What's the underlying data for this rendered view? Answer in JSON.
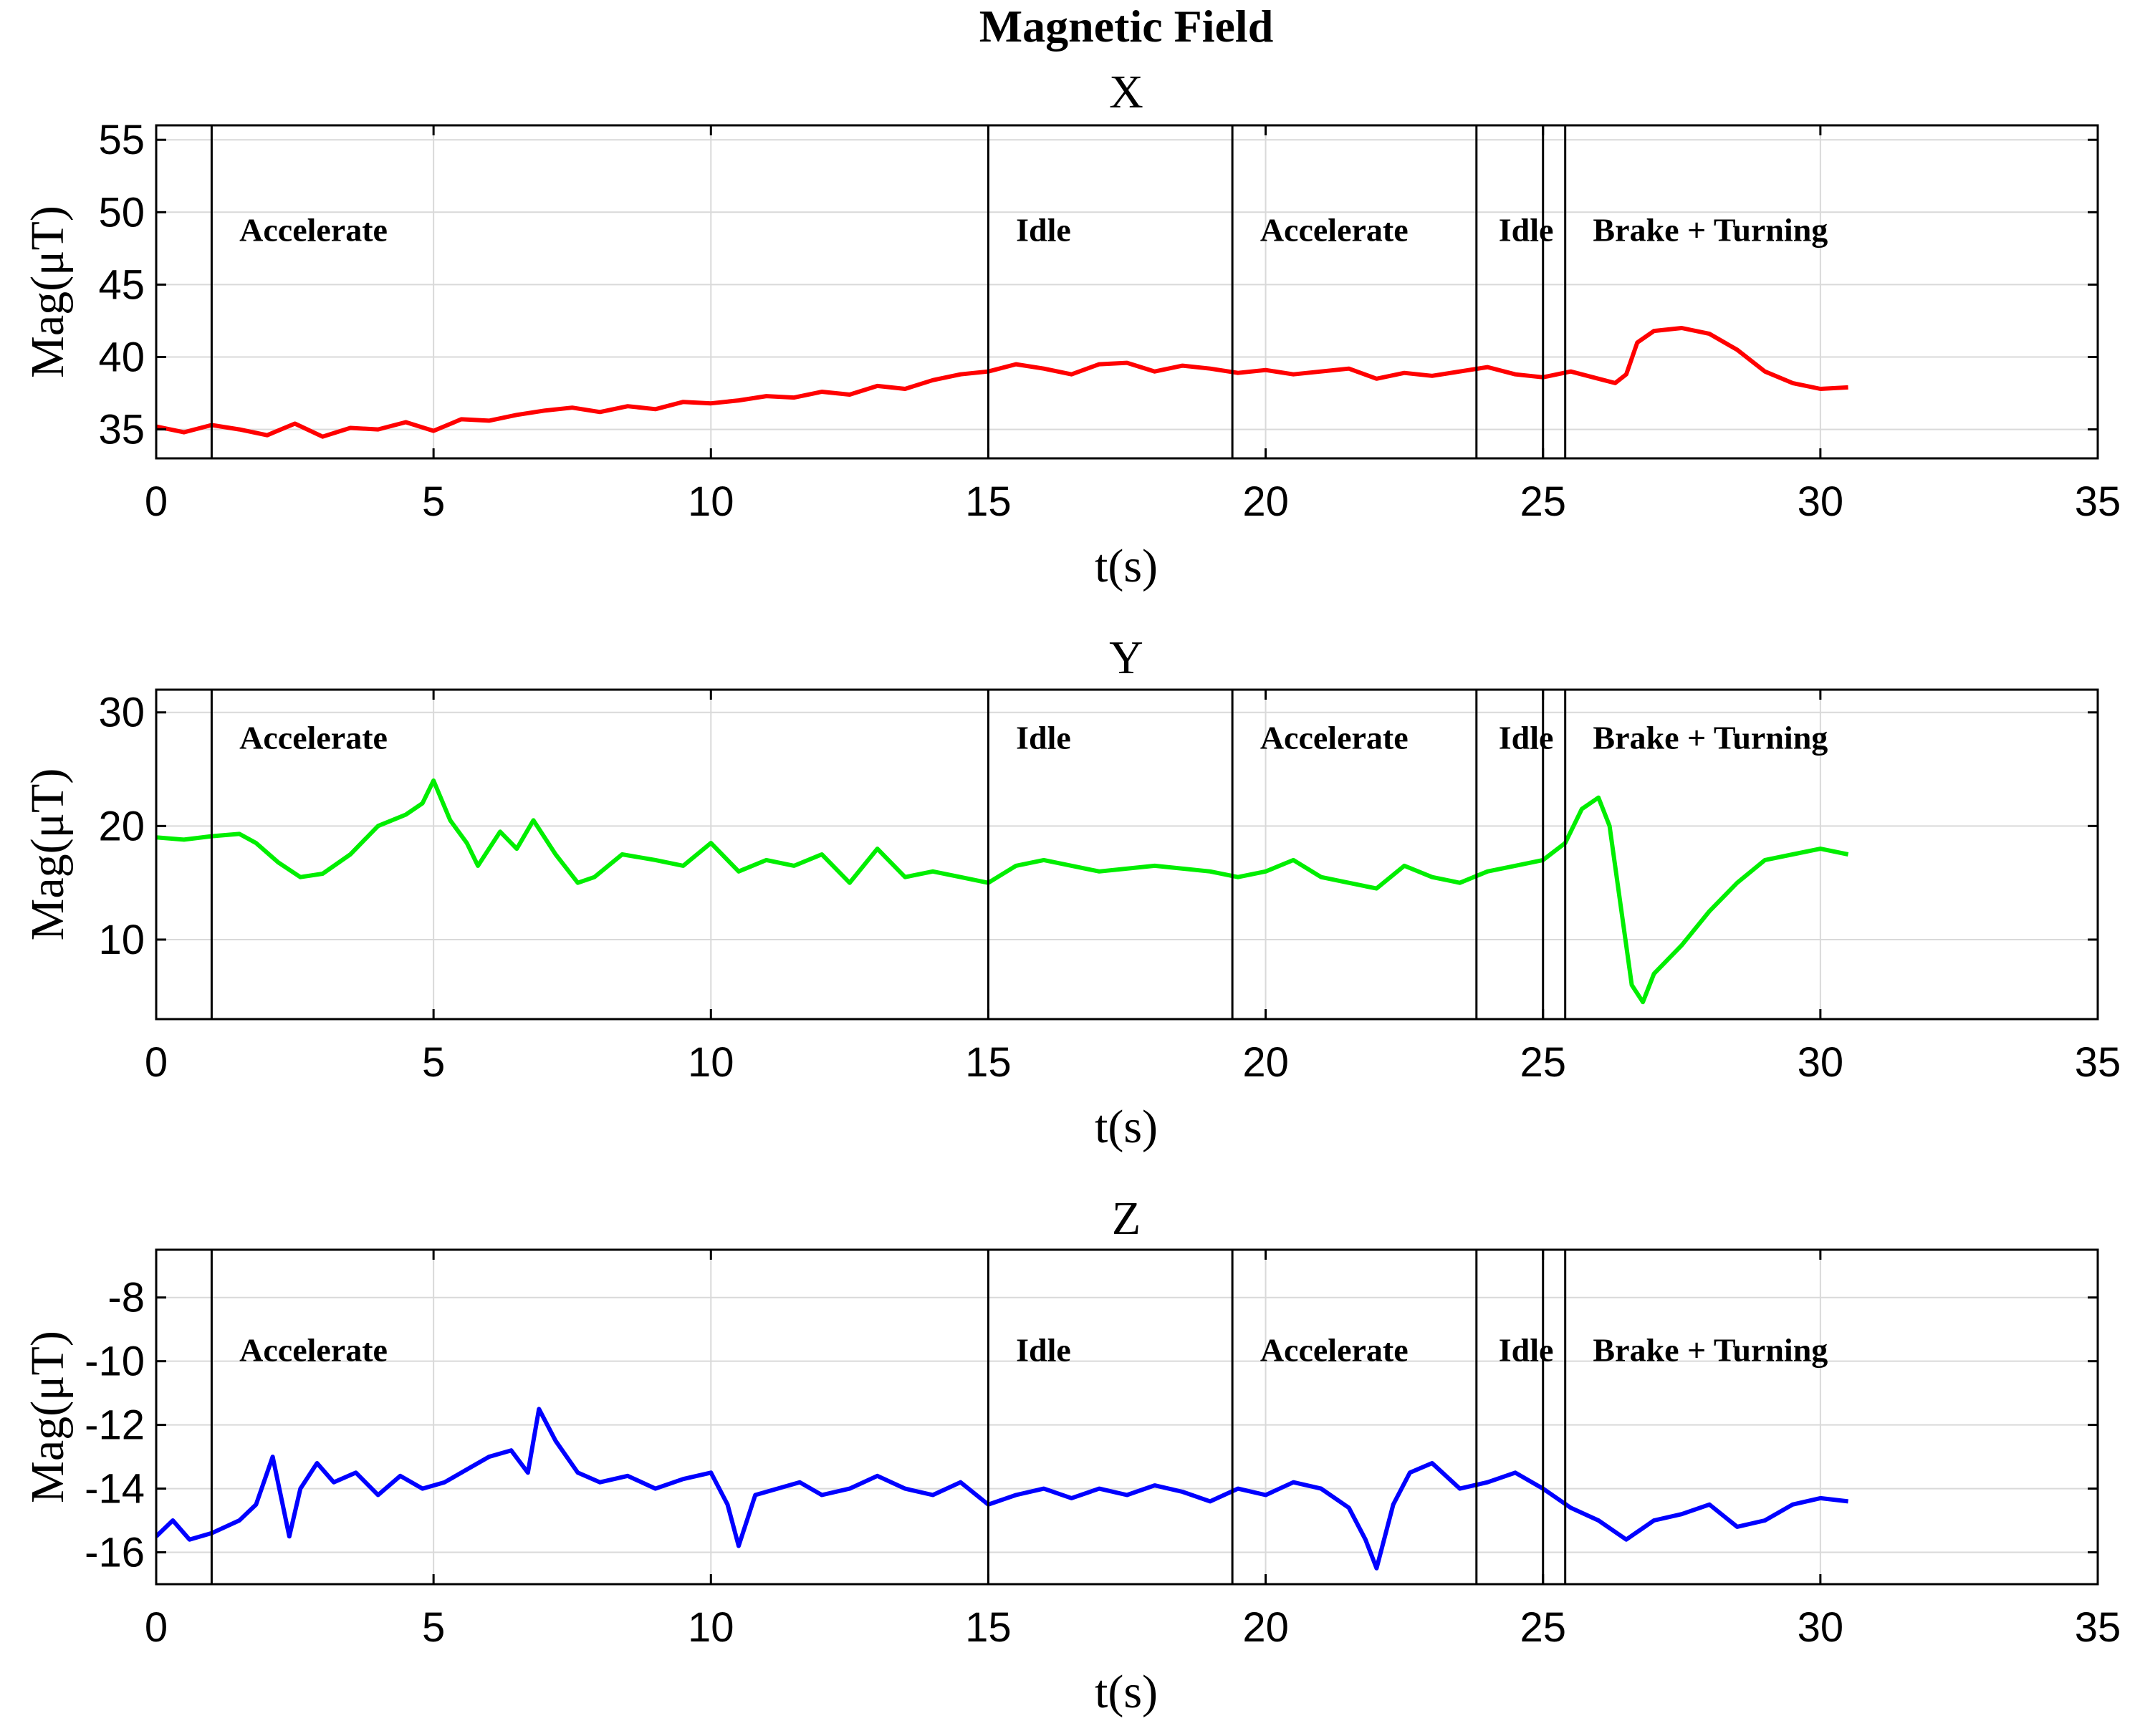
{
  "figure_title": "Magnetic Field",
  "colors": {
    "x_series": "#ff0000",
    "y_series": "#00ee00",
    "z_series": "#0000ff"
  },
  "chart_data": [
    {
      "type": "line",
      "title": "X",
      "xlabel": "t(s)",
      "ylabel": "Mag(μT)",
      "xlim": [
        0,
        35
      ],
      "ylim": [
        33,
        56
      ],
      "xticks": [
        0,
        5,
        10,
        15,
        20,
        25,
        30,
        35
      ],
      "xtick_labels": [
        "0",
        "5",
        "10",
        "15",
        "20",
        "25",
        "30",
        "35"
      ],
      "yticks": [
        35,
        40,
        45,
        50,
        55
      ],
      "ytick_labels": [
        "35",
        "40",
        "45",
        "50",
        "55"
      ],
      "grid": true,
      "phase_boundaries": [
        1.0,
        15.0,
        19.4,
        23.8,
        25.0,
        25.4
      ],
      "phase_labels": [
        {
          "text": "Accelerate",
          "x": 1.5
        },
        {
          "text": "Idle",
          "x": 15.5
        },
        {
          "text": "Accelerate",
          "x": 19.9
        },
        {
          "text": "Idle",
          "x": 24.2
        },
        {
          "text": "Brake + Turning",
          "x": 25.9
        }
      ],
      "phase_label_y": 48,
      "series": [
        {
          "color": "#ff0000",
          "x": [
            0,
            0.5,
            1,
            1.5,
            2,
            2.5,
            3,
            3.5,
            4,
            4.5,
            5,
            5.5,
            6,
            6.5,
            7,
            7.5,
            8,
            8.5,
            9,
            9.5,
            10,
            10.5,
            11,
            11.5,
            12,
            12.5,
            13,
            13.5,
            14,
            14.5,
            15,
            15.5,
            16,
            16.5,
            17,
            17.5,
            18,
            18.5,
            19,
            19.5,
            20,
            20.5,
            21,
            21.5,
            22,
            22.5,
            23,
            23.5,
            24,
            24.5,
            25,
            25.5,
            26,
            26.3,
            26.5,
            26.7,
            27,
            27.5,
            28,
            28.5,
            29,
            29.5,
            30,
            30.5
          ],
          "values": [
            35.2,
            34.8,
            35.3,
            35.0,
            34.6,
            35.4,
            34.5,
            35.1,
            35.0,
            35.5,
            34.9,
            35.7,
            35.6,
            36.0,
            36.3,
            36.5,
            36.2,
            36.6,
            36.4,
            36.9,
            36.8,
            37.0,
            37.3,
            37.2,
            37.6,
            37.4,
            38.0,
            37.8,
            38.4,
            38.8,
            39.0,
            39.5,
            39.2,
            38.8,
            39.5,
            39.6,
            39.0,
            39.4,
            39.2,
            38.9,
            39.1,
            38.8,
            39.0,
            39.2,
            38.5,
            38.9,
            38.7,
            39.0,
            39.3,
            38.8,
            38.6,
            39.0,
            38.5,
            38.2,
            38.8,
            41.0,
            41.8,
            42.0,
            41.6,
            40.5,
            39.0,
            38.2,
            37.8,
            37.9
          ]
        }
      ]
    },
    {
      "type": "line",
      "title": "Y",
      "xlabel": "t(s)",
      "ylabel": "Mag(μT)",
      "xlim": [
        0,
        35
      ],
      "ylim": [
        3,
        32
      ],
      "xticks": [
        0,
        5,
        10,
        15,
        20,
        25,
        30,
        35
      ],
      "xtick_labels": [
        "0",
        "5",
        "10",
        "15",
        "20",
        "25",
        "30",
        "35"
      ],
      "yticks": [
        10,
        20,
        30
      ],
      "ytick_labels": [
        "10",
        "20",
        "30"
      ],
      "grid": true,
      "phase_boundaries": [
        1.0,
        15.0,
        19.4,
        23.8,
        25.0,
        25.4
      ],
      "phase_labels": [
        {
          "text": "Accelerate",
          "x": 1.5
        },
        {
          "text": "Idle",
          "x": 15.5
        },
        {
          "text": "Accelerate",
          "x": 19.9
        },
        {
          "text": "Idle",
          "x": 24.2
        },
        {
          "text": "Brake + Turning",
          "x": 25.9
        }
      ],
      "phase_label_y": 26.8,
      "series": [
        {
          "color": "#00ee00",
          "x": [
            0,
            0.5,
            1,
            1.5,
            1.8,
            2.2,
            2.6,
            3.0,
            3.5,
            4.0,
            4.5,
            4.8,
            5.0,
            5.3,
            5.6,
            5.8,
            6.2,
            6.5,
            6.8,
            7.2,
            7.6,
            7.9,
            8.4,
            9.0,
            9.5,
            10.0,
            10.5,
            11.0,
            11.5,
            12.0,
            12.5,
            13.0,
            13.5,
            14.0,
            14.5,
            15.0,
            15.5,
            16.0,
            17.0,
            18.0,
            19.0,
            19.5,
            20.0,
            20.5,
            21.0,
            21.5,
            22.0,
            22.5,
            23.0,
            23.5,
            24.0,
            24.5,
            25.0,
            25.4,
            25.7,
            26.0,
            26.2,
            26.4,
            26.6,
            26.8,
            27.0,
            27.5,
            28.0,
            28.5,
            29.0,
            29.5,
            30.0,
            30.5
          ],
          "values": [
            19.0,
            18.8,
            19.1,
            19.3,
            18.5,
            16.8,
            15.5,
            15.8,
            17.5,
            20.0,
            21.0,
            22.0,
            24.0,
            20.5,
            18.5,
            16.5,
            19.5,
            18.0,
            20.5,
            17.5,
            15.0,
            15.5,
            17.5,
            17.0,
            16.5,
            18.5,
            16.0,
            17.0,
            16.5,
            17.5,
            15.0,
            18.0,
            15.5,
            16.0,
            15.5,
            15.0,
            16.5,
            17.0,
            16.0,
            16.5,
            16.0,
            15.5,
            16.0,
            17.0,
            15.5,
            15.0,
            14.5,
            16.5,
            15.5,
            15.0,
            16.0,
            16.5,
            17.0,
            18.5,
            21.5,
            22.5,
            20.0,
            13.0,
            6.0,
            4.5,
            7.0,
            9.5,
            12.5,
            15.0,
            17.0,
            17.5,
            18.0,
            17.5
          ]
        }
      ]
    },
    {
      "type": "line",
      "title": "Z",
      "xlabel": "t(s)",
      "ylabel": "Mag(μT)",
      "xlim": [
        0,
        35
      ],
      "ylim": [
        -17,
        -6.5
      ],
      "xticks": [
        0,
        5,
        10,
        15,
        20,
        25,
        30,
        35
      ],
      "xtick_labels": [
        "0",
        "5",
        "10",
        "15",
        "20",
        "25",
        "30",
        "35"
      ],
      "yticks": [
        -16,
        -14,
        -12,
        -10,
        -8
      ],
      "ytick_labels": [
        "-16",
        "-14",
        "-12",
        "-10",
        "-8"
      ],
      "grid": true,
      "phase_boundaries": [
        1.0,
        15.0,
        19.4,
        23.8,
        25.0,
        25.4
      ],
      "phase_labels": [
        {
          "text": "Accelerate",
          "x": 1.5
        },
        {
          "text": "Idle",
          "x": 15.5
        },
        {
          "text": "Accelerate",
          "x": 19.9
        },
        {
          "text": "Idle",
          "x": 24.2
        },
        {
          "text": "Brake + Turning",
          "x": 25.9
        }
      ],
      "phase_label_y": -10,
      "series": [
        {
          "color": "#0000ff",
          "x": [
            0,
            0.3,
            0.6,
            1.0,
            1.5,
            1.8,
            2.1,
            2.4,
            2.6,
            2.9,
            3.2,
            3.6,
            4.0,
            4.4,
            4.8,
            5.2,
            5.6,
            6.0,
            6.4,
            6.7,
            6.9,
            7.2,
            7.6,
            8.0,
            8.5,
            9.0,
            9.5,
            10.0,
            10.3,
            10.5,
            10.8,
            11.2,
            11.6,
            12.0,
            12.5,
            13.0,
            13.5,
            14.0,
            14.5,
            15.0,
            15.5,
            16.0,
            16.5,
            17.0,
            17.5,
            18.0,
            18.5,
            19.0,
            19.5,
            20.0,
            20.5,
            21.0,
            21.5,
            21.8,
            22.0,
            22.3,
            22.6,
            23.0,
            23.5,
            24.0,
            24.5,
            25.0,
            25.5,
            26.0,
            26.5,
            27.0,
            27.5,
            28.0,
            28.5,
            29.0,
            29.5,
            30.0,
            30.5
          ],
          "values": [
            -15.5,
            -15.0,
            -15.6,
            -15.4,
            -15.0,
            -14.5,
            -13.0,
            -15.5,
            -14.0,
            -13.2,
            -13.8,
            -13.5,
            -14.2,
            -13.6,
            -14.0,
            -13.8,
            -13.4,
            -13.0,
            -12.8,
            -13.5,
            -11.5,
            -12.5,
            -13.5,
            -13.8,
            -13.6,
            -14.0,
            -13.7,
            -13.5,
            -14.5,
            -15.8,
            -14.2,
            -14.0,
            -13.8,
            -14.2,
            -14.0,
            -13.6,
            -14.0,
            -14.2,
            -13.8,
            -14.5,
            -14.2,
            -14.0,
            -14.3,
            -14.0,
            -14.2,
            -13.9,
            -14.1,
            -14.4,
            -14.0,
            -14.2,
            -13.8,
            -14.0,
            -14.6,
            -15.6,
            -16.5,
            -14.5,
            -13.5,
            -13.2,
            -14.0,
            -13.8,
            -13.5,
            -14.0,
            -14.6,
            -15.0,
            -15.6,
            -15.0,
            -14.8,
            -14.5,
            -15.2,
            -15.0,
            -14.5,
            -14.3,
            -14.4
          ]
        }
      ]
    }
  ]
}
